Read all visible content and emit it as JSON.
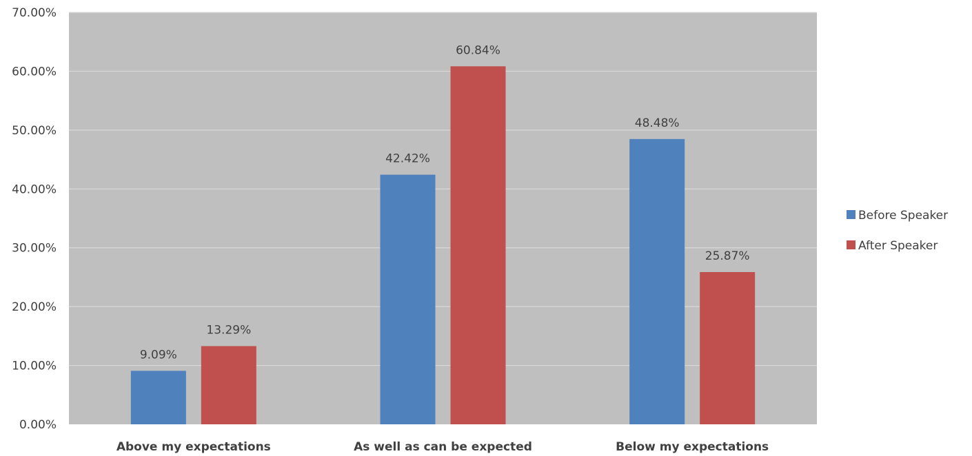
{
  "chart_data": {
    "type": "bar",
    "categories": [
      "Above my expectations",
      "As well as can be expected",
      "Below my expectations"
    ],
    "series": [
      {
        "name": "Before Speaker",
        "values": [
          9.09,
          42.42,
          48.48
        ],
        "color": "#4f81bd"
      },
      {
        "name": "After Speaker",
        "values": [
          13.29,
          60.84,
          25.87
        ],
        "color": "#c0504d"
      }
    ],
    "value_format": "percent_2dp",
    "ylim": [
      0,
      70
    ],
    "yticks": [
      "0.00%",
      "10.00%",
      "20.00%",
      "30.00%",
      "40.00%",
      "50.00%",
      "60.00%",
      "70.00%"
    ],
    "grid": true,
    "plot_background": "#bfbfbf",
    "gridline_color": "#d9d9d9",
    "legend_position": "right"
  }
}
